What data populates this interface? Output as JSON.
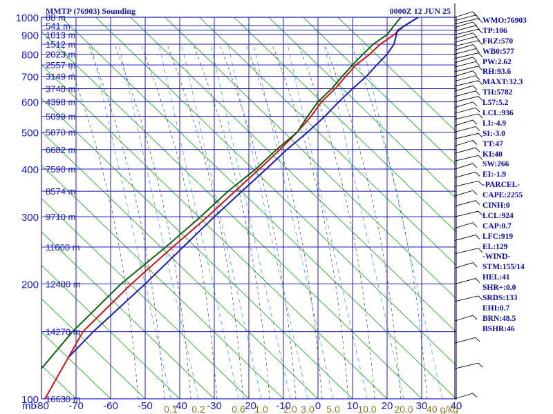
{
  "header": {
    "title": "MMTP (76903) Sounding",
    "time": "0000Z 12 JUN 25"
  },
  "indices": [
    "WMO:76903",
    "TP:106",
    "FRZ:570",
    "WB0:577",
    "PW:2.62",
    "RH:93.6",
    "MAXT:32.3",
    "TH:5782",
    "L57:5.2",
    "LCL:936",
    "LI:-4.9",
    "SI:-3.0",
    "TT:47",
    "KI:40",
    "SW:266",
    "EI:-1.9",
    "-PARCEL-",
    "CAPE:2255",
    "CINH:0",
    "LCL:924",
    "CAP:0.7",
    "LFC:919",
    "EL:129",
    "-WIND-",
    "STM:155/14",
    "HEL:41",
    "SHR+:0.0",
    "SRDS:133",
    "EHI:0.7",
    "BRN:48.5",
    "BSHR:46"
  ],
  "colors": {
    "grid": "#1a1ab4",
    "axis_text": "#1a1ab4",
    "dry_adiabat": "#22aa22",
    "moist_adiabat": "#555555",
    "mixing_ratio": "#3aa0e0",
    "temperature": "#cc1111",
    "parcel": "#1a1ab4",
    "dewpoint": "#0b5f0b",
    "wind": "#000000"
  },
  "chart_data": {
    "type": "line",
    "title": "MMTP (76903) Sounding",
    "subtitle": "0000Z 12 JUN 25",
    "xlabel": "",
    "ylabel": "mb",
    "xlim": [
      -80,
      40
    ],
    "ylim": [
      1000,
      100
    ],
    "y_log_scale": true,
    "x_ticks": [
      -80,
      -70,
      -60,
      -50,
      -40,
      -30,
      -20,
      -10,
      0,
      10,
      20,
      30,
      40
    ],
    "pressure_ticks": [
      100,
      200,
      300,
      400,
      500,
      600,
      700,
      800,
      900,
      1000
    ],
    "pressure_lines": [
      100,
      150,
      200,
      250,
      300,
      350,
      400,
      450,
      500,
      550,
      600,
      650,
      700,
      750,
      800,
      850,
      900,
      925,
      950,
      1000
    ],
    "height_labels": [
      {
        "p": 100,
        "text": "16630 m"
      },
      {
        "p": 150,
        "text": "14270 m"
      },
      {
        "p": 200,
        "text": "12480 m"
      },
      {
        "p": 250,
        "text": "11000 m"
      },
      {
        "p": 300,
        "text": "9710 m"
      },
      {
        "p": 350,
        "text": "8574 m"
      },
      {
        "p": 400,
        "text": "7590 m"
      },
      {
        "p": 450,
        "text": "6682 m"
      },
      {
        "p": 500,
        "text": "5870 m"
      },
      {
        "p": 550,
        "text": "5099 m"
      },
      {
        "p": 600,
        "text": "4398 m"
      },
      {
        "p": 650,
        "text": "3748 m"
      },
      {
        "p": 700,
        "text": "3149 m"
      },
      {
        "p": 750,
        "text": "2557 m"
      },
      {
        "p": 800,
        "text": "2023 m"
      },
      {
        "p": 850,
        "text": "1512 m"
      },
      {
        "p": 900,
        "text": "1013 m"
      },
      {
        "p": 950,
        "text": "541 m"
      },
      {
        "p": 1000,
        "text": "88 m"
      }
    ],
    "mixing_ratio_labels": [
      "0.1",
      "0.2",
      "0.6",
      "1.0",
      "2.0",
      "3.0",
      "5.0",
      "10.0",
      "20.0",
      "40 g/kg"
    ],
    "series": [
      {
        "name": "Temperature",
        "values": [
          [
            1000,
            29
          ],
          [
            950,
            25
          ],
          [
            900,
            22
          ],
          [
            850,
            18
          ],
          [
            800,
            15
          ],
          [
            750,
            11
          ],
          [
            700,
            8
          ],
          [
            650,
            5
          ],
          [
            600,
            1
          ],
          [
            550,
            -2
          ],
          [
            500,
            -6
          ],
          [
            450,
            -11
          ],
          [
            400,
            -17
          ],
          [
            350,
            -24
          ],
          [
            300,
            -32
          ],
          [
            250,
            -42
          ],
          [
            200,
            -54
          ],
          [
            150,
            -68
          ],
          [
            100,
            -79
          ]
        ]
      },
      {
        "name": "Parcel",
        "values": [
          [
            1000,
            29
          ],
          [
            924,
            23
          ],
          [
            850,
            22
          ],
          [
            800,
            20
          ],
          [
            750,
            17
          ],
          [
            700,
            14
          ],
          [
            650,
            10
          ],
          [
            600,
            6
          ],
          [
            550,
            2
          ],
          [
            500,
            -3
          ],
          [
            450,
            -9
          ],
          [
            400,
            -15
          ],
          [
            350,
            -22
          ],
          [
            300,
            -30
          ],
          [
            250,
            -39
          ],
          [
            200,
            -50
          ],
          [
            150,
            -65
          ],
          [
            129,
            -72
          ]
        ]
      },
      {
        "name": "Dewpoint",
        "values": [
          [
            1000,
            24
          ],
          [
            950,
            22
          ],
          [
            900,
            20
          ],
          [
            850,
            16
          ],
          [
            800,
            13
          ],
          [
            750,
            10
          ],
          [
            700,
            7
          ],
          [
            650,
            4
          ],
          [
            600,
            0
          ],
          [
            550,
            -3
          ],
          [
            500,
            -6
          ],
          [
            450,
            -12
          ],
          [
            400,
            -18
          ],
          [
            350,
            -26
          ],
          [
            300,
            -34
          ],
          [
            250,
            -44
          ],
          [
            200,
            -57
          ],
          [
            150,
            -71
          ],
          [
            120,
            -80
          ]
        ]
      }
    ],
    "wind_levels": [
      1000,
      980,
      960,
      940,
      920,
      900,
      880,
      860,
      840,
      820,
      800,
      780,
      760,
      740,
      720,
      700,
      680,
      660,
      640,
      620,
      600,
      580,
      560,
      540,
      520,
      500,
      480,
      460,
      440,
      420,
      400,
      380,
      360,
      340,
      320,
      300,
      280,
      260,
      240,
      220,
      200,
      180,
      160,
      140,
      120,
      100
    ]
  }
}
